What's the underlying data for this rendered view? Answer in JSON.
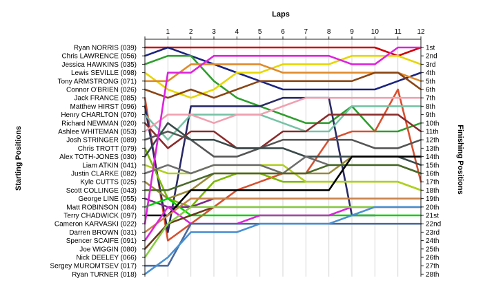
{
  "chart_data": {
    "type": "line",
    "title": "Laps",
    "xlabel": "Laps",
    "ylabel_left": "Starting Positions",
    "ylabel_right": "Finishing Positions",
    "x": [
      0,
      1,
      2,
      3,
      4,
      5,
      6,
      7,
      8,
      9,
      10,
      11,
      12
    ],
    "x_tick_labels": [
      "1",
      "2",
      "3",
      "4",
      "5",
      "6",
      "7",
      "8",
      "9",
      "10",
      "11",
      "12"
    ],
    "y_reversed": true,
    "ylim": [
      1,
      28
    ],
    "grid": "vertical",
    "start_labels": [
      "Ryan NORRIS (039)",
      "Chris LAWRENCE (056)",
      "Jessica HAWKINS (035)",
      "Lewis SEVILLE (098)",
      "Tony ARMSTRONG (071)",
      "Connor O'BRIEN (026)",
      "Jack FRANCE (085)",
      "Matthew HIRST (096)",
      "Henry CHARLTON (070)",
      "Richard NEWMAN (020)",
      "Ashlee WHITEMAN (053)",
      "Josh STRINGER (089)",
      "Chris TROTT (079)",
      "Alex TOTH-JONES (030)",
      "Liam ATKIN (041)",
      "Justin CLARKE (082)",
      "Kyle CUTTS (025)",
      "Scott COLLINGE (043)",
      "George LINE (055)",
      "Matt ROBINSON (084)",
      "Terry CHADWICK (097)",
      "Cameron KARVASKI (022)",
      "Darren BROWN (031)",
      "Spencer SCAIFE (091)",
      "Joe WIGGIN (080)",
      "Nick DEELEY (066)",
      "Sergey MUROMTSEV (017)",
      "Ryan TURNER (018)"
    ],
    "finish_labels": [
      "1st",
      "2nd",
      "3rd",
      "4th",
      "5th",
      "6th",
      "7th",
      "8th",
      "9th",
      "10th",
      "11th",
      "12th",
      "13th",
      "14th",
      "15th",
      "16th",
      "17th",
      "18th",
      "19th",
      "20th",
      "21st",
      "22nd",
      "23rd",
      "24th",
      "25th",
      "26th",
      "27th",
      "28th"
    ],
    "series": [
      {
        "color": "#cc0000",
        "values": [
          1,
          1,
          1,
          1,
          1,
          1,
          1,
          1,
          1,
          1,
          1,
          2,
          1
        ]
      },
      {
        "color": "#1a237e",
        "values": [
          2,
          1,
          2,
          3,
          4,
          5,
          6,
          6,
          6,
          6,
          6,
          5,
          4
        ]
      },
      {
        "color": "#2e9e2e",
        "values": [
          3,
          2,
          2,
          5,
          7,
          8,
          9,
          10,
          10,
          8,
          11,
          11,
          10
        ]
      },
      {
        "color": "#e6d600",
        "values": [
          4,
          6,
          7,
          6,
          4,
          4,
          3,
          3,
          3,
          2,
          2,
          2,
          3
        ]
      },
      {
        "color": "#e08a2a",
        "values": [
          5,
          5,
          3,
          3,
          3,
          3,
          4,
          4,
          4,
          4,
          4,
          4,
          5
        ]
      },
      {
        "color": "#8b4513",
        "values": [
          6,
          7,
          6,
          7,
          6,
          5,
          5,
          5,
          5,
          5,
          4,
          4,
          6
        ]
      },
      {
        "color": "#d85030",
        "values": [
          7,
          24,
          22,
          20,
          18,
          17,
          16,
          16,
          12,
          11,
          11,
          6,
          17
        ]
      },
      {
        "color": "#2a2a66",
        "values": [
          8,
          23,
          8,
          8,
          8,
          8,
          7,
          7,
          7,
          21,
          21,
          null,
          null
        ]
      },
      {
        "color": "#76c2a6",
        "values": [
          9,
          12,
          9,
          9,
          9,
          9,
          10,
          11,
          11,
          8,
          8,
          8,
          8
        ]
      },
      {
        "color": "#8b2b2b",
        "values": [
          10,
          13,
          11,
          11,
          13,
          13,
          11,
          11,
          9,
          9,
          9,
          9,
          11
        ]
      },
      {
        "color": "#f0a0b0",
        "values": [
          11,
          9,
          9,
          10,
          9,
          9,
          8,
          7,
          7,
          7,
          7,
          7,
          7
        ]
      },
      {
        "color": "#555555",
        "values": [
          12,
          11,
          12,
          14,
          14,
          13,
          12,
          12,
          12,
          12,
          13,
          13,
          12
        ]
      },
      {
        "color": "#7ab800",
        "values": [
          13,
          19,
          20,
          17,
          16,
          16,
          17,
          17,
          17,
          17,
          17,
          17,
          18
        ]
      },
      {
        "color": "#3a4a4a",
        "values": [
          14,
          10,
          12,
          12,
          13,
          13,
          13,
          14,
          14,
          14,
          14,
          14,
          15
        ]
      },
      {
        "color": "#b0d020",
        "values": [
          15,
          16,
          16,
          15,
          15,
          15,
          15,
          17,
          17,
          17,
          17,
          17,
          18
        ]
      },
      {
        "color": "#6e6e6e",
        "values": [
          16,
          15,
          16,
          15,
          15,
          15,
          16,
          14,
          15,
          15,
          15,
          15,
          16
        ]
      },
      {
        "color": "#9a8a3a",
        "values": [
          17,
          19,
          18,
          16,
          16,
          16,
          16,
          16,
          16,
          14,
          14,
          14,
          14
        ]
      },
      {
        "color": "#4a6a2a",
        "values": [
          18,
          18,
          17,
          16,
          16,
          16,
          16,
          16,
          15,
          15,
          15,
          15,
          16
        ]
      },
      {
        "color": "#7a2a8a",
        "values": [
          19,
          20,
          20,
          19,
          19,
          null,
          null,
          null,
          null,
          null,
          null,
          null,
          null
        ]
      },
      {
        "color": "#00d000",
        "values": [
          20,
          19,
          21,
          21,
          21,
          21,
          21,
          21,
          21,
          21,
          21,
          21,
          21
        ]
      },
      {
        "color": "#000000",
        "values": [
          21,
          21,
          18,
          18,
          18,
          18,
          18,
          18,
          18,
          14,
          14,
          14,
          14
        ]
      },
      {
        "color": "#dd22dd",
        "values": [
          22,
          4,
          4,
          2,
          2,
          2,
          2,
          2,
          2,
          3,
          3,
          1,
          1
        ]
      },
      {
        "color": "#c8824a",
        "values": [
          23,
          21,
          19,
          19,
          19,
          19,
          19,
          19,
          19,
          19,
          19,
          19,
          19
        ]
      },
      {
        "color": "#dd22dd",
        "values": [
          24,
          20,
          22,
          22,
          22,
          21,
          21,
          21,
          21,
          20,
          20,
          20,
          20
        ]
      },
      {
        "color": "#6a3a1a",
        "values": [
          25,
          22,
          21,
          20,
          20,
          20,
          20,
          20,
          20,
          20,
          20,
          20,
          20
        ]
      },
      {
        "color": "#88cc44",
        "values": [
          26,
          22,
          20,
          20,
          20,
          20,
          20,
          20,
          20,
          20,
          20,
          20,
          20
        ]
      },
      {
        "color": "#4a6aa0",
        "values": [
          27,
          27,
          22,
          22,
          22,
          22,
          22,
          22,
          22,
          22,
          22,
          22,
          22
        ]
      },
      {
        "color": "#4a90d0",
        "values": [
          28,
          26,
          23,
          23,
          23,
          22,
          22,
          22,
          22,
          21,
          20,
          20,
          20
        ]
      }
    ]
  }
}
